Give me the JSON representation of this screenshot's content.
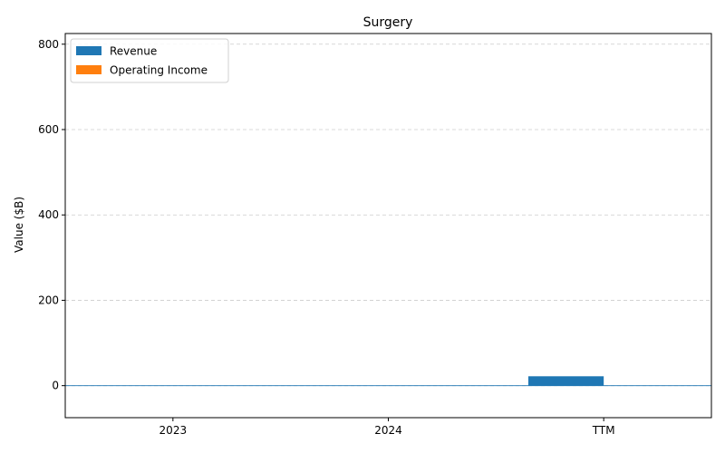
{
  "chart_data": {
    "type": "bar",
    "title": "Surgery",
    "xlabel": "",
    "ylabel": "Value ($B)",
    "categories": [
      "2023",
      "2024",
      "TTM"
    ],
    "series": [
      {
        "name": "Revenue",
        "color": "#1f77b4",
        "values": [
          0,
          0,
          22
        ]
      },
      {
        "name": "Operating Income",
        "color": "#ff7f0e",
        "values": [
          0,
          0,
          0
        ]
      }
    ],
    "ylim": [
      -75,
      825
    ],
    "yticks": [
      0,
      200,
      400,
      600,
      800
    ],
    "grid": true,
    "legend_position": "top-left",
    "zero_line_color": "#1f77b4"
  }
}
